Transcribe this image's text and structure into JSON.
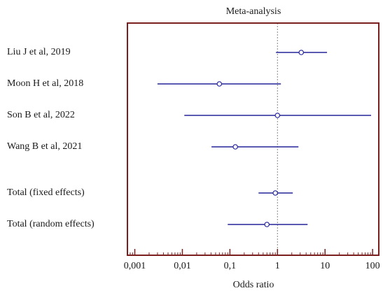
{
  "chart_data": {
    "type": "forest",
    "title": "Meta-analysis",
    "xlabel": "Odds ratio",
    "categories": [
      "Liu J et al, 2019",
      "Moon H et al, 2018",
      "Son B et al, 2022",
      "Wang B et al, 2021",
      "Total (fixed effects)",
      "Total (random effects)"
    ],
    "values": [
      3.16,
      0.06,
      1.0,
      0.13,
      0.9,
      0.6
    ],
    "lower": [
      0.93,
      0.003,
      0.011,
      0.041,
      0.4,
      0.09
    ],
    "upper": [
      11,
      1.18,
      93,
      2.76,
      2.1,
      4.3
    ],
    "xlim": [
      0.0007,
      135
    ],
    "log_x": true,
    "xticks": [
      {
        "value": 0.001,
        "label": "0,001"
      },
      {
        "value": 0.01,
        "label": "0,01"
      },
      {
        "value": 0.1,
        "label": "0,1"
      },
      1,
      10,
      100
    ],
    "reference_line": 1,
    "color": "#24249a",
    "frame_color": "#7a1e1e"
  }
}
